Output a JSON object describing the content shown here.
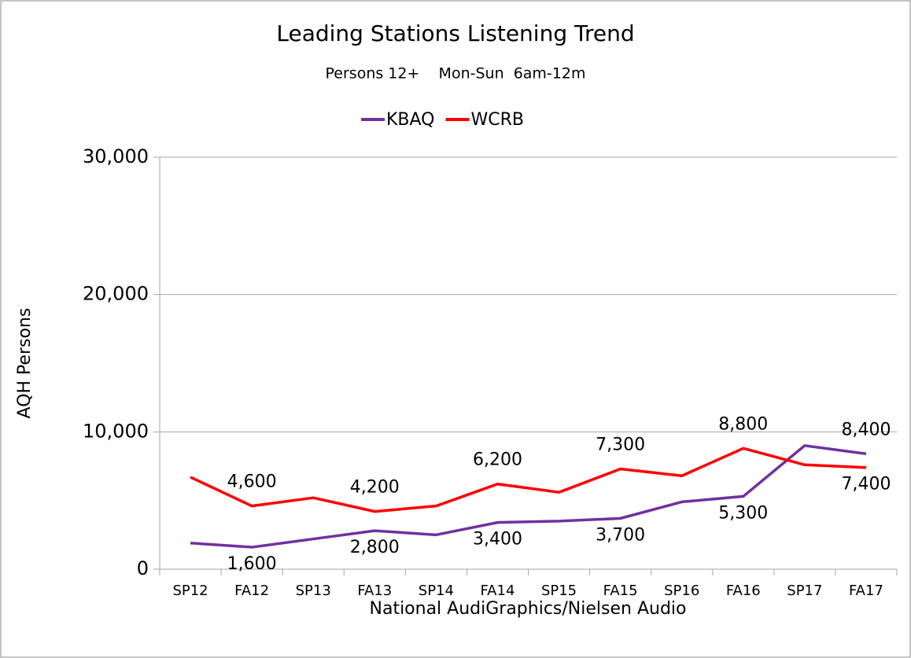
{
  "chart_data": {
    "type": "line",
    "title": "Leading Stations Listening Trend",
    "subtitle": "Persons 12+    Mon-Sun  6am-12m",
    "xlabel": "National AudiGraphics/Nielsen Audio",
    "ylabel": "AQH Persons",
    "categories": [
      "SP12",
      "FA12",
      "SP13",
      "FA13",
      "SP14",
      "FA14",
      "SP15",
      "FA15",
      "SP16",
      "FA16",
      "SP17",
      "FA17"
    ],
    "series": [
      {
        "name": "KBAQ",
        "color": "#7030a0",
        "values": [
          1900,
          1600,
          2200,
          2800,
          2500,
          3400,
          3500,
          3700,
          4900,
          5300,
          9000,
          8400
        ],
        "value_labels": [
          null,
          "1,600",
          null,
          "2,800",
          null,
          "3,400",
          null,
          "3,700",
          null,
          "5,300",
          null,
          "8,400"
        ]
      },
      {
        "name": "WCRB",
        "color": "#ff0000",
        "values": [
          6700,
          4600,
          5200,
          4200,
          4600,
          6200,
          5600,
          7300,
          6800,
          8800,
          7600,
          7400
        ],
        "value_labels": [
          null,
          "4,600",
          null,
          "4,200",
          null,
          "6,200",
          null,
          "7,300",
          null,
          "8,800",
          null,
          "7,400"
        ]
      }
    ],
    "ylim": [
      0,
      30000
    ],
    "yticks": [
      {
        "value": 0,
        "label": "0"
      },
      {
        "value": 10000,
        "label": "10,000"
      },
      {
        "value": 20000,
        "label": "20,000"
      },
      {
        "value": 30000,
        "label": "30,000"
      }
    ],
    "grid": true,
    "legend": "top"
  }
}
